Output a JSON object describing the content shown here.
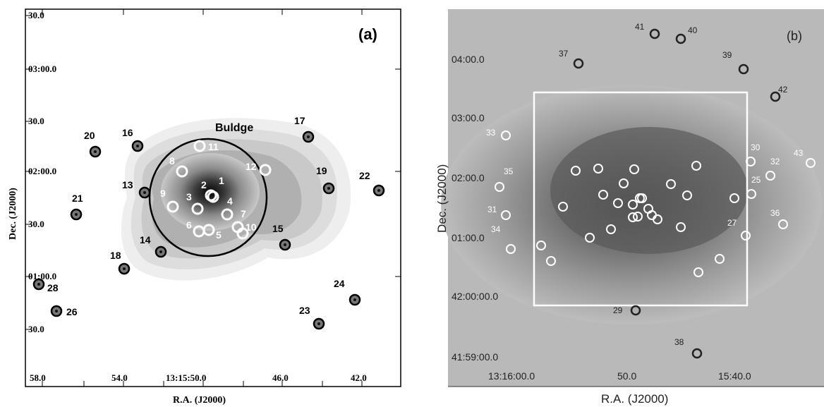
{
  "panel_a": {
    "label": "(a)",
    "region_label": "Buldge",
    "xlabel": "R.A. (J2000)",
    "ylabel": "Dec. (J2000)",
    "x_ticks": [
      "58.0",
      "54.0",
      "13:15:50.0",
      "46.0",
      "42.0"
    ],
    "y_ticks": [
      "30.0",
      "03:00.0",
      "30.0",
      "02:00.0",
      "30.0",
      "01:00.0",
      "30.0"
    ],
    "sources": [
      {
        "id": "1",
        "style": "white"
      },
      {
        "id": "2",
        "style": "white"
      },
      {
        "id": "3",
        "style": "white"
      },
      {
        "id": "4",
        "style": "white"
      },
      {
        "id": "5",
        "style": "white"
      },
      {
        "id": "6",
        "style": "white"
      },
      {
        "id": "7",
        "style": "white"
      },
      {
        "id": "8",
        "style": "white"
      },
      {
        "id": "9",
        "style": "white"
      },
      {
        "id": "10",
        "style": "white"
      },
      {
        "id": "11",
        "style": "white"
      },
      {
        "id": "12",
        "style": "white"
      },
      {
        "id": "13",
        "style": "dark"
      },
      {
        "id": "14",
        "style": "dark"
      },
      {
        "id": "15",
        "style": "dark"
      },
      {
        "id": "16",
        "style": "dark"
      },
      {
        "id": "17",
        "style": "dark"
      },
      {
        "id": "18",
        "style": "dark"
      },
      {
        "id": "19",
        "style": "dark"
      },
      {
        "id": "20",
        "style": "dark"
      },
      {
        "id": "21",
        "style": "dark"
      },
      {
        "id": "22",
        "style": "dark"
      },
      {
        "id": "23",
        "style": "dark"
      },
      {
        "id": "24",
        "style": "dark"
      },
      {
        "id": "26",
        "style": "dark"
      },
      {
        "id": "28",
        "style": "dark"
      }
    ]
  },
  "panel_b": {
    "label": "(b)",
    "xlabel": "R.A. (J2000)",
    "ylabel": "Dec. (J2000)",
    "x_ticks": [
      "13:16:00.0",
      "50.0",
      "15:40.0"
    ],
    "y_ticks": [
      "04:00.0",
      "03:00.0",
      "02:00.0",
      "01:00.0",
      "42:00:00.0",
      "41:59:00.0"
    ],
    "labeled_sources": [
      "25",
      "27",
      "29",
      "30",
      "31",
      "32",
      "33",
      "34",
      "35",
      "36",
      "37",
      "38",
      "39",
      "40",
      "41",
      "42",
      "43"
    ]
  }
}
